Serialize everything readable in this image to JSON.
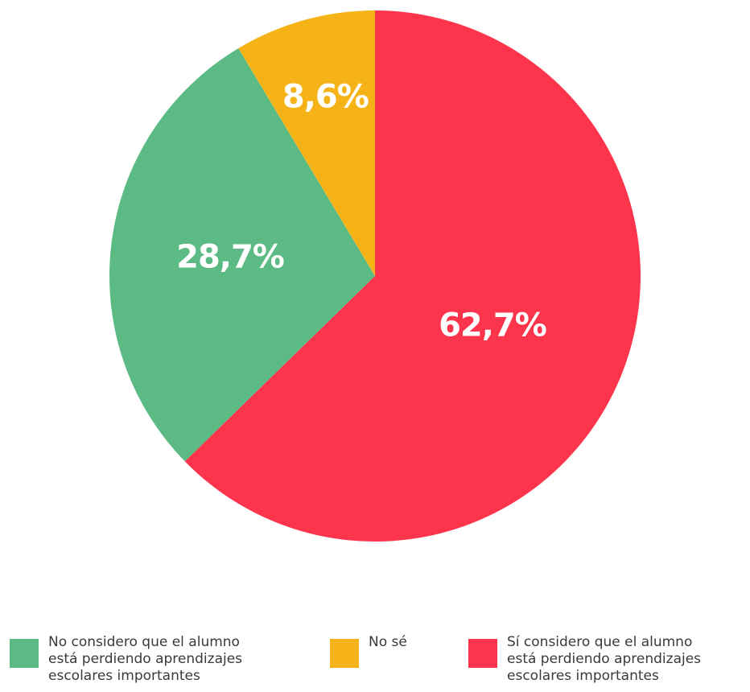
{
  "chart_data": {
    "type": "pie",
    "title": "",
    "slices": [
      {
        "label": "Sí considero que el alumno está perdiendo aprendizajes escolares importantes",
        "value": 62.7,
        "display": "62,7%",
        "color": "#fc354c"
      },
      {
        "label": "No considero que el alumno está perdiendo aprendizajes escolares importantes",
        "value": 28.7,
        "display": "28,7%",
        "color": "#5cba84"
      },
      {
        "label": "No sé",
        "value": 8.6,
        "display": "8,6%",
        "color": "#f5b317"
      }
    ],
    "legend_position": "bottom",
    "start_angle": "12 o'clock",
    "direction": "clockwise"
  },
  "legend": {
    "items": [
      {
        "text": "No considero que el alumno\nestá perdiendo aprendizajes\nescolares importantes",
        "color": "#5cba84"
      },
      {
        "text": "No sé",
        "color": "#f5b317"
      },
      {
        "text": "Sí considero que el alumno\nestá perdiendo aprendizajes\nescolares importantes",
        "color": "#fc354c"
      }
    ]
  }
}
